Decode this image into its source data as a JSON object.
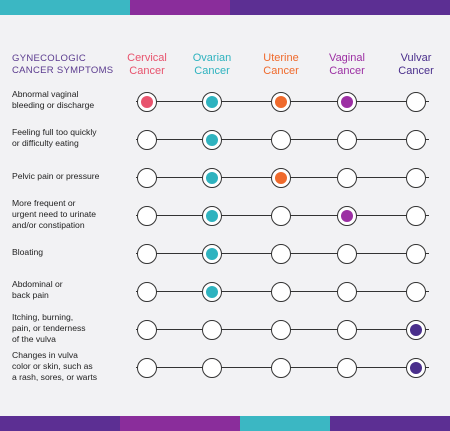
{
  "header": {
    "title_line1": "GYNECOLOGIC",
    "title_line2": "CANCER SYMPTOMS"
  },
  "columns": [
    {
      "line1": "Cervical",
      "line2": "Cancer",
      "color": "#e8536d"
    },
    {
      "line1": "Ovarian",
      "line2": "Cancer",
      "color": "#2fb3bf"
    },
    {
      "line1": "Uterine",
      "line2": "Cancer",
      "color": "#ef6a2c"
    },
    {
      "line1": "Vaginal",
      "line2": "Cancer",
      "color": "#9c2fa3"
    },
    {
      "line1": "Vulvar",
      "line2": "Cancer",
      "color": "#4a2f8c"
    }
  ],
  "rows": [
    {
      "lines": [
        "Abnormal vaginal",
        "bleeding or discharge"
      ],
      "marked": [
        true,
        true,
        true,
        true,
        false
      ]
    },
    {
      "lines": [
        "Feeling full too quickly",
        "or difficulty eating"
      ],
      "marked": [
        false,
        true,
        false,
        false,
        false
      ]
    },
    {
      "lines": [
        "Pelvic pain or pressure"
      ],
      "marked": [
        false,
        true,
        true,
        false,
        false
      ]
    },
    {
      "lines": [
        "More frequent or",
        "urgent need to urinate",
        "and/or constipation"
      ],
      "marked": [
        false,
        true,
        false,
        true,
        false
      ]
    },
    {
      "lines": [
        "Bloating"
      ],
      "marked": [
        false,
        true,
        false,
        false,
        false
      ]
    },
    {
      "lines": [
        "Abdominal or",
        "back pain"
      ],
      "marked": [
        false,
        true,
        false,
        false,
        false
      ]
    },
    {
      "lines": [
        "Itching, burning,",
        "pain, or tenderness",
        "of the vulva"
      ],
      "marked": [
        false,
        false,
        false,
        false,
        true
      ]
    },
    {
      "lines": [
        "Changes in vulva",
        "color or skin, such as",
        "a rash, sores, or warts"
      ],
      "marked": [
        false,
        false,
        false,
        false,
        true
      ]
    }
  ]
}
